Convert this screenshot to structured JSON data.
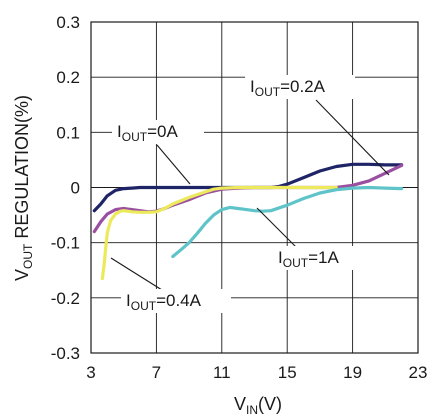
{
  "chart_data": {
    "type": "line",
    "title": "",
    "xlabel": "V",
    "xlabel_sub": "IN",
    "xlabel_unit": "(V)",
    "ylabel": "V",
    "ylabel_sub": "OUT",
    "ylabel_rest": " REGULATION(%)",
    "xlim": [
      3,
      23
    ],
    "ylim": [
      -0.3,
      0.3
    ],
    "xticks": [
      "3",
      "7",
      "11",
      "15",
      "19",
      "23"
    ],
    "xtick_values": [
      3,
      7,
      11,
      15,
      19,
      23
    ],
    "yticks": [
      "0.3",
      "0.2",
      "0.1",
      "0",
      "-0.1",
      "-0.2",
      "-0.3"
    ],
    "ytick_values": [
      0.3,
      0.2,
      0.1,
      0,
      -0.1,
      -0.2,
      -0.3
    ],
    "grid": true,
    "legend": "none",
    "series": [
      {
        "name": "I OUT=0A",
        "color": "#1e2466",
        "x": [
          3.2,
          3.6,
          4.0,
          4.5,
          5.0,
          5.5,
          6.0,
          7.0,
          8.0,
          9.0,
          10.0,
          11.0,
          12.0,
          13.0,
          14.0,
          14.5,
          15.0,
          16.0,
          17.0,
          18.0,
          19.0,
          20.0,
          21.0,
          22.0
        ],
        "y": [
          -0.042,
          -0.03,
          -0.015,
          -0.005,
          -0.002,
          -0.001,
          0.0,
          0.0,
          0.0,
          0.0,
          0.0,
          0.0,
          0.0,
          0.0,
          0.0,
          0.002,
          0.006,
          0.018,
          0.03,
          0.038,
          0.042,
          0.042,
          0.041,
          0.041
        ]
      },
      {
        "name": "I OUT=0.2A",
        "color": "#9a4fa0",
        "x": [
          3.2,
          3.6,
          4.0,
          4.5,
          5.0,
          5.5,
          6.0,
          6.5,
          7.0,
          7.5,
          8.0,
          9.0,
          10.0,
          11.0,
          12.0,
          13.0,
          14.0,
          15.0,
          16.0,
          17.0,
          18.0,
          19.0,
          20.0,
          21.0,
          22.0
        ],
        "y": [
          -0.08,
          -0.062,
          -0.048,
          -0.04,
          -0.038,
          -0.04,
          -0.042,
          -0.044,
          -0.043,
          -0.038,
          -0.032,
          -0.022,
          -0.01,
          -0.003,
          -0.001,
          0.0,
          0.0,
          0.0,
          0.0,
          0.0,
          0.0,
          0.004,
          0.012,
          0.026,
          0.04
        ]
      },
      {
        "name": "I OUT=0.4A",
        "color": "#ecea5c",
        "x": [
          3.7,
          3.8,
          3.9,
          4.0,
          4.2,
          4.5,
          4.8,
          5.0,
          5.5,
          6.0,
          6.5,
          7.0,
          7.5,
          8.0,
          9.0,
          10.0,
          10.5,
          11.0,
          12.0,
          13.0,
          14.0,
          15.0,
          16.0,
          17.0,
          18.0
        ],
        "y": [
          -0.165,
          -0.14,
          -0.11,
          -0.082,
          -0.06,
          -0.048,
          -0.043,
          -0.042,
          -0.044,
          -0.045,
          -0.045,
          -0.044,
          -0.038,
          -0.03,
          -0.018,
          -0.008,
          -0.003,
          -0.001,
          0.0,
          0.0,
          0.0,
          0.0,
          0.0,
          0.0,
          0.0
        ]
      },
      {
        "name": "I OUT=1A",
        "color": "#5ec4c9",
        "x": [
          8.0,
          8.5,
          9.0,
          9.5,
          10.0,
          10.5,
          11.0,
          11.5,
          12.0,
          12.5,
          13.0,
          13.5,
          14.0,
          15.0,
          16.0,
          17.0,
          18.0,
          19.0,
          20.0,
          21.0,
          22.0
        ],
        "y": [
          -0.125,
          -0.113,
          -0.1,
          -0.083,
          -0.065,
          -0.05,
          -0.04,
          -0.036,
          -0.038,
          -0.04,
          -0.042,
          -0.043,
          -0.042,
          -0.032,
          -0.02,
          -0.01,
          -0.004,
          -0.001,
          0.0,
          -0.001,
          -0.002
        ]
      }
    ],
    "annotations": [
      {
        "id": "ann-0a",
        "main": "I",
        "sub": "OUT",
        "rest": "=0A"
      },
      {
        "id": "ann-02a",
        "main": "I",
        "sub": "OUT",
        "rest": "=0.2A"
      },
      {
        "id": "ann-1a",
        "main": "I",
        "sub": "OUT",
        "rest": "=1A"
      },
      {
        "id": "ann-04a",
        "main": "I",
        "sub": "OUT",
        "rest": "=0.4A"
      }
    ]
  }
}
